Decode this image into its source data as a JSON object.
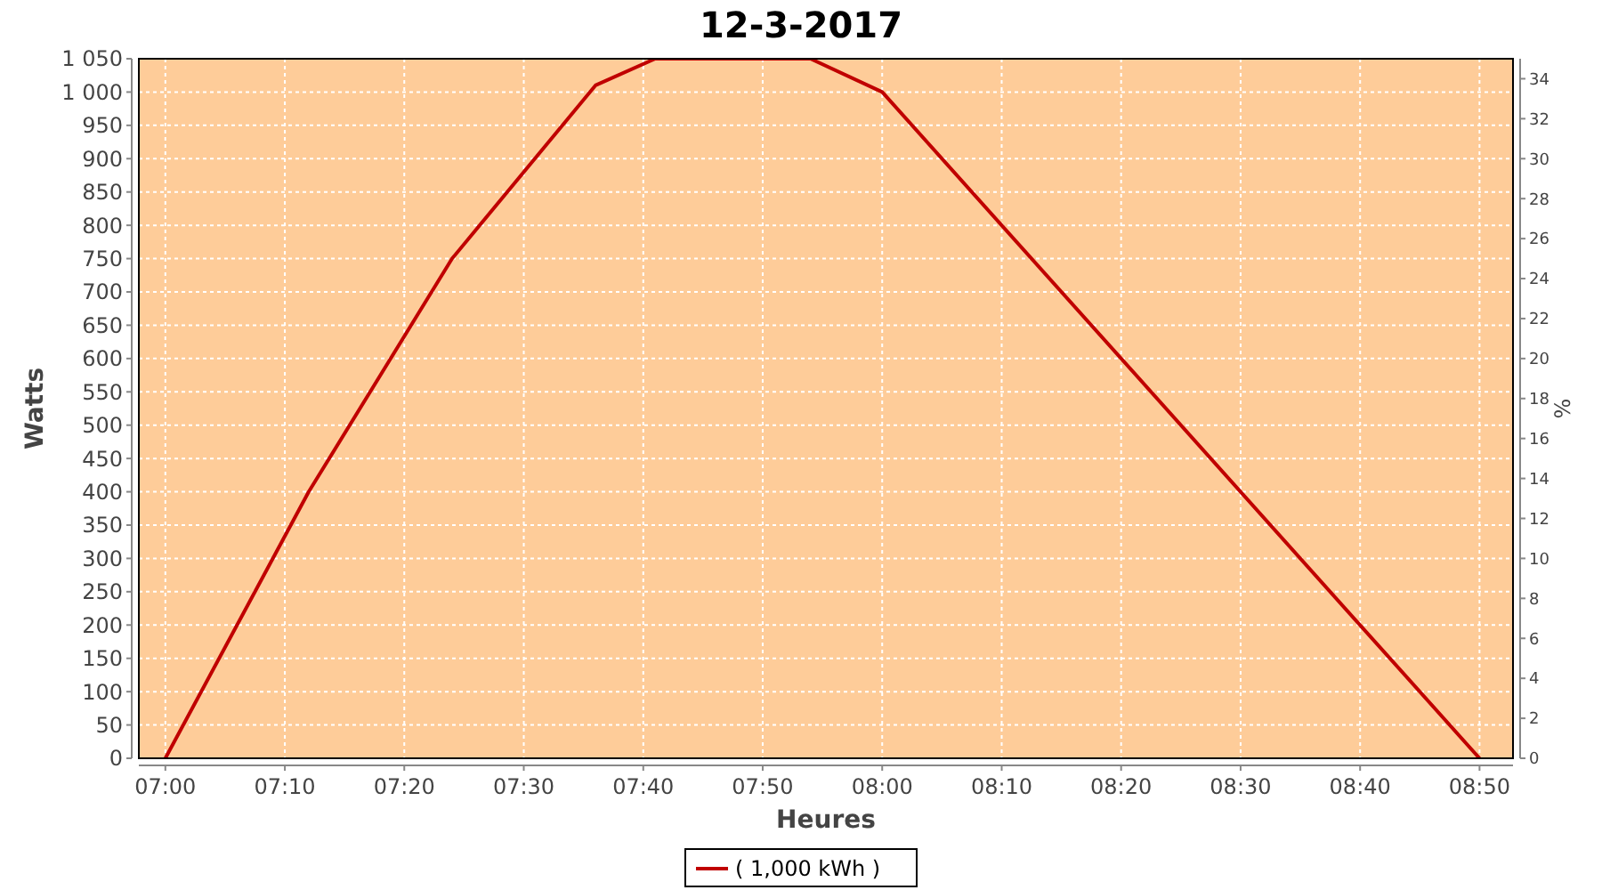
{
  "chart_data": {
    "type": "line",
    "title": "12-3-2017",
    "xlabel": "Heures",
    "ylabel": "Watts",
    "y2label": "%",
    "x": [
      7,
      7.2,
      7.4,
      7.6,
      7.6833,
      7.9,
      8,
      8.8333
    ],
    "series": [
      {
        "name": "( 1,000 kWh )",
        "color": "#c00000",
        "values": [
          0,
          400,
          750,
          1010,
          1050,
          1050,
          1000,
          0
        ]
      }
    ],
    "xlim": [
      6.963,
      8.88
    ],
    "xticks": [
      {
        "value": 7,
        "label": "07:00"
      },
      {
        "value": 7.1667,
        "label": "07:10"
      },
      {
        "value": 7.3333,
        "label": "07:20"
      },
      {
        "value": 7.5,
        "label": "07:30"
      },
      {
        "value": 7.6667,
        "label": "07:40"
      },
      {
        "value": 7.8333,
        "label": "07:50"
      },
      {
        "value": 8,
        "label": "08:00"
      },
      {
        "value": 8.1667,
        "label": "08:10"
      },
      {
        "value": 8.3333,
        "label": "08:20"
      },
      {
        "value": 8.5,
        "label": "08:30"
      },
      {
        "value": 8.6667,
        "label": "08:40"
      },
      {
        "value": 8.8333,
        "label": "08:50"
      }
    ],
    "ylim": [
      0,
      1050
    ],
    "yticks": [
      0,
      50,
      100,
      150,
      200,
      250,
      300,
      350,
      400,
      450,
      500,
      550,
      600,
      650,
      700,
      750,
      800,
      850,
      900,
      950,
      {
        "value": 1000,
        "label": "1 000"
      },
      {
        "value": 1050,
        "label": "1 050"
      }
    ],
    "y2lim": [
      0,
      35
    ],
    "y2ticks": [
      0,
      2,
      4,
      6,
      8,
      10,
      12,
      14,
      16,
      18,
      20,
      22,
      24,
      26,
      28,
      30,
      32,
      34
    ],
    "grid": true,
    "legend": "bottom",
    "line_style": "solid"
  }
}
